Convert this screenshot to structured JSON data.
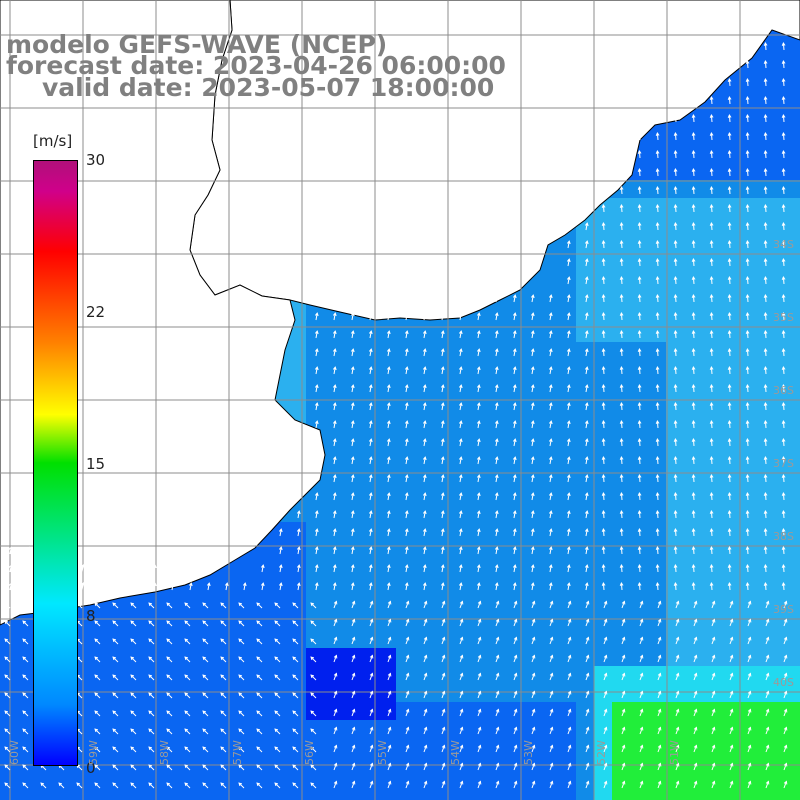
{
  "header": {
    "model_line": "modelo GEFS-WAVE (NCEP)",
    "forecast_line": "forecast date: 2023-04-26 06:00:00",
    "valid_line": "valid date: 2023-05-07 18:00:00"
  },
  "colorbar": {
    "unit": "[m/s]",
    "ticks": [
      "30",
      "22",
      "15",
      "8",
      "0"
    ],
    "range": [
      0,
      30
    ],
    "colors": [
      "#0000ff",
      "#0088ff",
      "#00e8ff",
      "#00e000",
      "#ffff00",
      "#ff8000",
      "#ff0000",
      "#b0107a"
    ]
  },
  "map": {
    "lat_labels": [
      "34S",
      "35S",
      "36S",
      "37S",
      "38S",
      "39S",
      "40S"
    ],
    "lon_labels": [
      "60W",
      "59W",
      "58W",
      "57W",
      "56W",
      "55W",
      "54W",
      "53W",
      "52W",
      "51W"
    ],
    "field_colors": {
      "deep_blue": "#0020ee",
      "blue": "#0a66f2",
      "mid_blue": "#118be8",
      "light_blue": "#2bb0ef",
      "cyan": "#21d9f0",
      "green": "#21ee3a",
      "land": "#ffffff",
      "grid": "#8c8c8c",
      "coast": "#000000",
      "arrow": "#ffffff"
    }
  }
}
